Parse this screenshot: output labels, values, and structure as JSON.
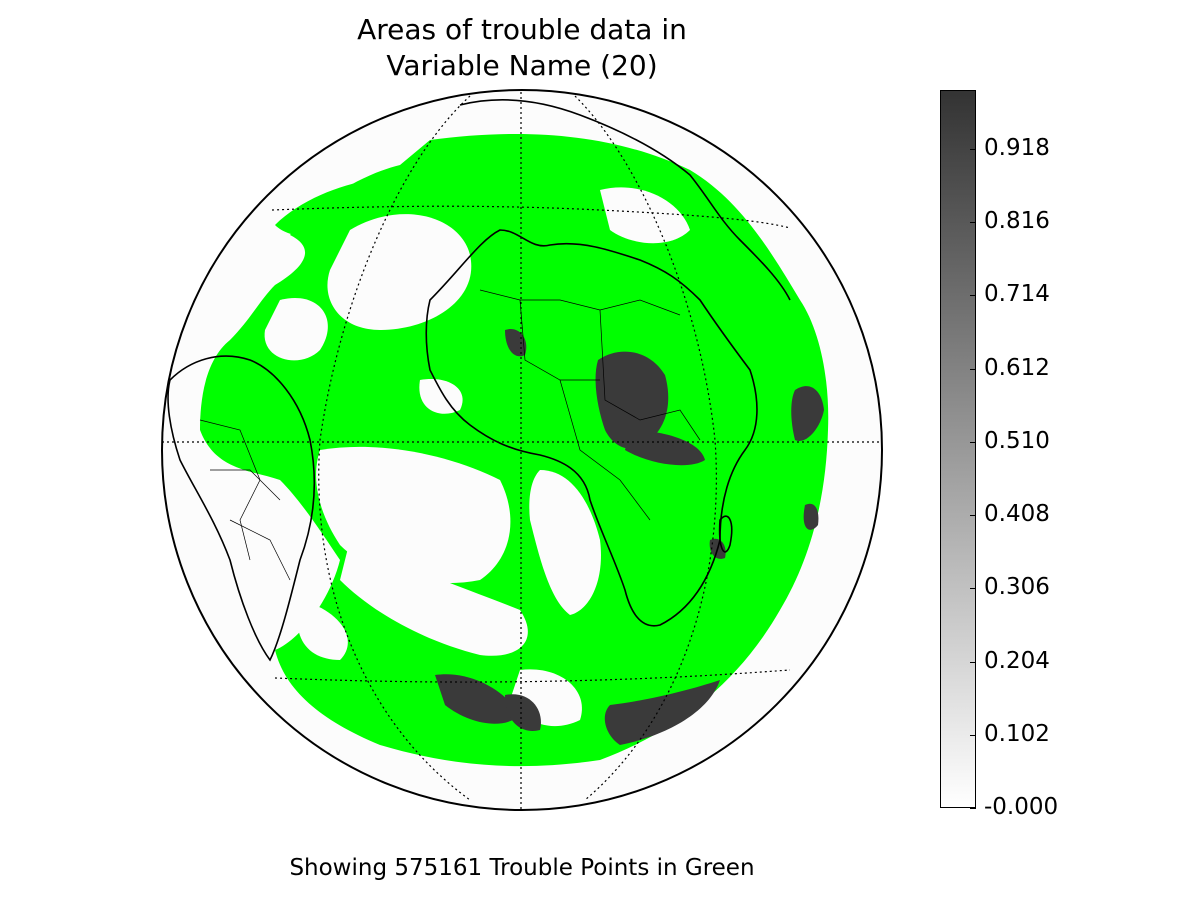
{
  "title": {
    "line1": "Areas of trouble data in",
    "line2": "Variable Name (20)"
  },
  "caption": "Showing 575161 Trouble Points in Green",
  "colors": {
    "trouble": "#00ff00",
    "ocean": "#fcfcfc",
    "graticule": "#000000",
    "bar_dark": "#333333",
    "bar_light": "#ffffff"
  },
  "colorbar": {
    "min": -0.0,
    "max": 1.0,
    "tick_values": [
      -0.0,
      0.102,
      0.204,
      0.306,
      0.408,
      0.51,
      0.612,
      0.714,
      0.816,
      0.918
    ],
    "tick_labels": [
      "-0.000",
      "0.102",
      "0.204",
      "0.306",
      "0.408",
      "0.510",
      "0.612",
      "0.714",
      "0.816",
      "0.918"
    ]
  }
}
